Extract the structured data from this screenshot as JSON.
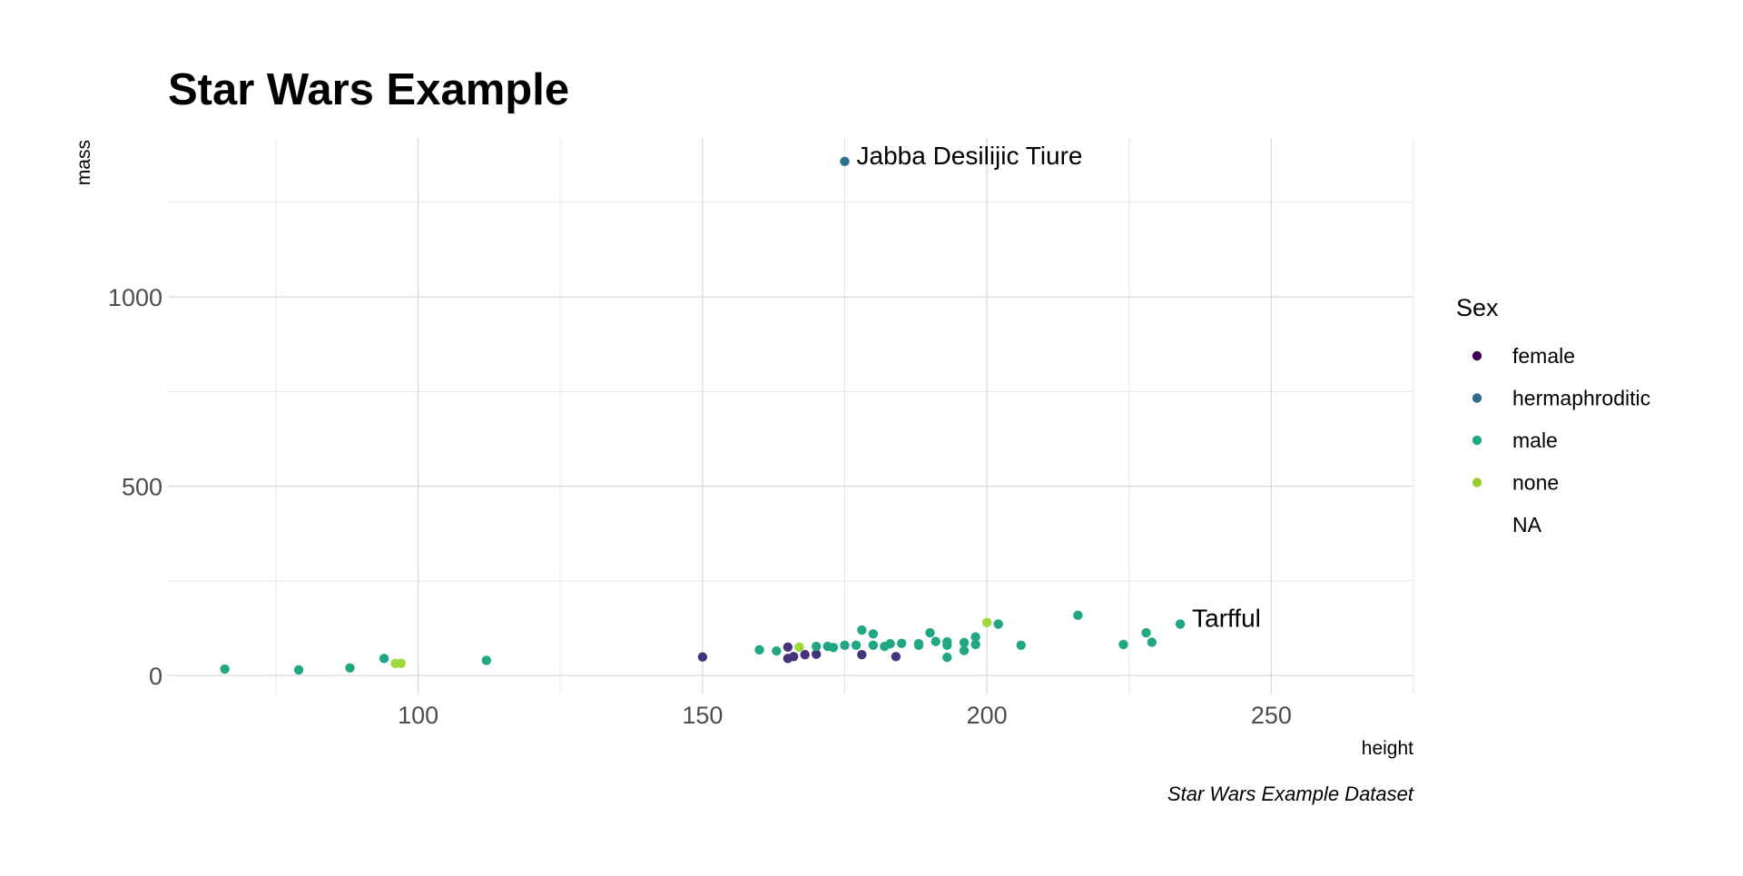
{
  "chart_data": {
    "type": "scatter",
    "title": "Star Wars Example",
    "xlabel": "height",
    "ylabel": "mass",
    "caption": "Star Wars Example Dataset",
    "xlim": [
      56,
      275
    ],
    "ylim": [
      -50,
      1420
    ],
    "x_ticks": [
      100,
      150,
      200,
      250
    ],
    "y_ticks": [
      0,
      500,
      1000
    ],
    "grid": true,
    "legend": {
      "title": "Sex",
      "placement": "right",
      "entries": [
        {
          "name": "female",
          "color": "#440154"
        },
        {
          "name": "hermaphroditic",
          "color": "#31688E"
        },
        {
          "name": "male",
          "color": "#21A784"
        },
        {
          "name": "none",
          "color": "#9ACD32"
        },
        {
          "name": "NA",
          "color": ""
        }
      ]
    },
    "annotations": [
      {
        "label": "Jabba Desilijic Tiure",
        "x": 175,
        "y": 1358
      },
      {
        "label": "Tarfful",
        "x": 234,
        "y": 136
      }
    ],
    "series": [
      {
        "name": "female",
        "color": "#46337E",
        "points": [
          {
            "x": 150,
            "y": 49
          },
          {
            "x": 165,
            "y": 75
          },
          {
            "x": 165,
            "y": 45
          },
          {
            "x": 166,
            "y": 50
          },
          {
            "x": 168,
            "y": 55
          },
          {
            "x": 170,
            "y": 56.2
          },
          {
            "x": 178,
            "y": 55
          },
          {
            "x": 184,
            "y": 50
          }
        ]
      },
      {
        "name": "hermaphroditic",
        "color": "#2C728E",
        "points": [
          {
            "x": 175,
            "y": 1358
          }
        ]
      },
      {
        "name": "male",
        "color": "#21A784",
        "points": [
          {
            "x": 66,
            "y": 17
          },
          {
            "x": 79,
            "y": 15
          },
          {
            "x": 88,
            "y": 20
          },
          {
            "x": 94,
            "y": 45
          },
          {
            "x": 112,
            "y": 40
          },
          {
            "x": 160,
            "y": 68
          },
          {
            "x": 163,
            "y": 65
          },
          {
            "x": 170,
            "y": 77
          },
          {
            "x": 172,
            "y": 77
          },
          {
            "x": 173,
            "y": 74
          },
          {
            "x": 175,
            "y": 80
          },
          {
            "x": 177,
            "y": 80
          },
          {
            "x": 178,
            "y": 120
          },
          {
            "x": 180,
            "y": 110
          },
          {
            "x": 180,
            "y": 80
          },
          {
            "x": 182,
            "y": 77
          },
          {
            "x": 183,
            "y": 84
          },
          {
            "x": 185,
            "y": 85
          },
          {
            "x": 188,
            "y": 84
          },
          {
            "x": 188,
            "y": 80
          },
          {
            "x": 190,
            "y": 113
          },
          {
            "x": 191,
            "y": 90
          },
          {
            "x": 193,
            "y": 89
          },
          {
            "x": 193,
            "y": 80
          },
          {
            "x": 193,
            "y": 48
          },
          {
            "x": 196,
            "y": 87
          },
          {
            "x": 196,
            "y": 66
          },
          {
            "x": 198,
            "y": 102
          },
          {
            "x": 198,
            "y": 82
          },
          {
            "x": 202,
            "y": 136
          },
          {
            "x": 206,
            "y": 80
          },
          {
            "x": 216,
            "y": 159
          },
          {
            "x": 224,
            "y": 82
          },
          {
            "x": 228,
            "y": 113
          },
          {
            "x": 229,
            "y": 88
          },
          {
            "x": 234,
            "y": 136
          }
        ]
      },
      {
        "name": "none",
        "color": "#9FD93A",
        "points": [
          {
            "x": 96,
            "y": 32
          },
          {
            "x": 97,
            "y": 32
          },
          {
            "x": 167,
            "y": 75
          },
          {
            "x": 200,
            "y": 140
          }
        ]
      }
    ]
  }
}
